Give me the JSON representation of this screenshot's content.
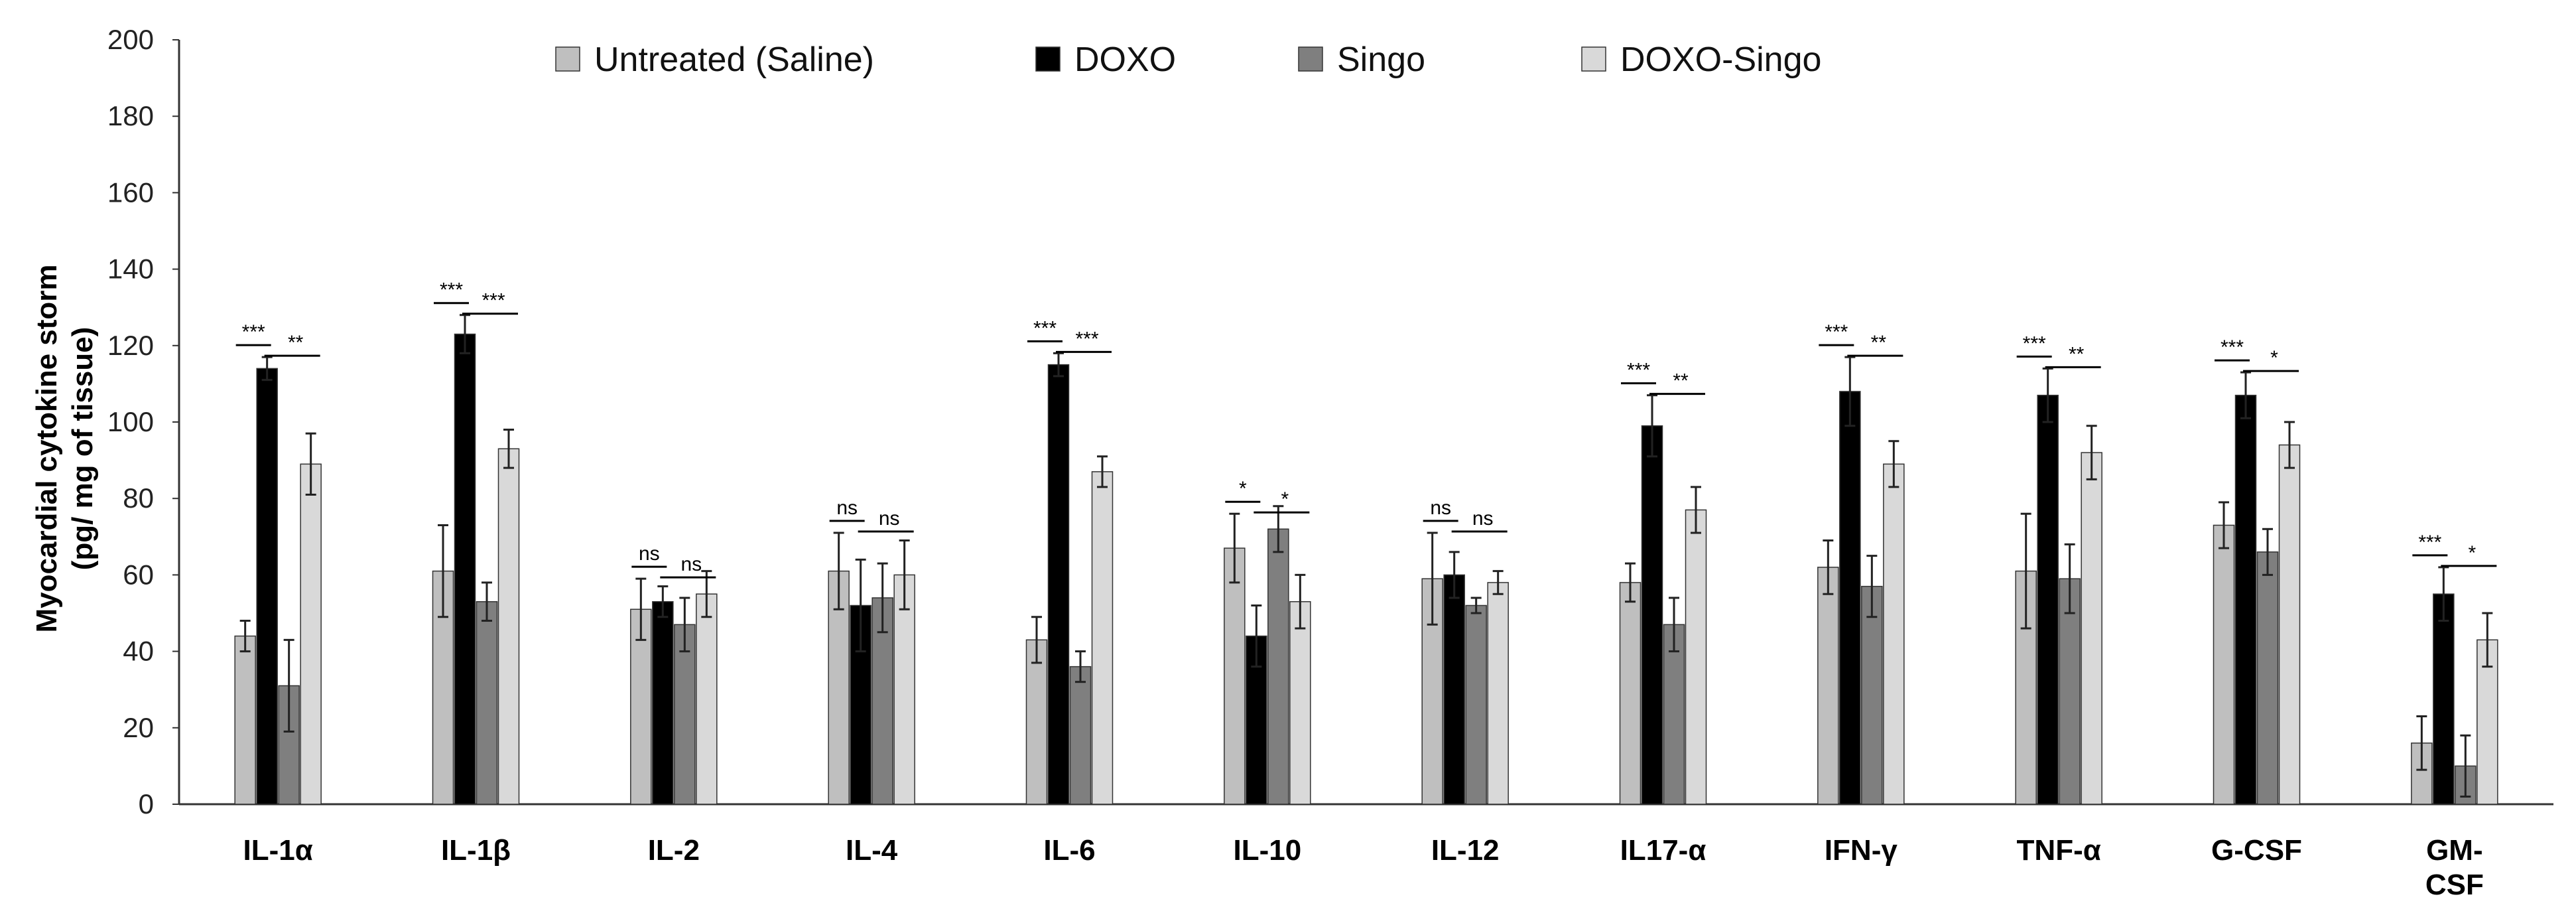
{
  "chart_data": {
    "type": "bar",
    "title": "",
    "xlabel": "",
    "ylabel_lines": [
      "Myocardial cytokine storm",
      "(pg/ mg of tissue)"
    ],
    "ylim": [
      0,
      200
    ],
    "yticks": [
      0,
      20,
      40,
      60,
      80,
      100,
      120,
      140,
      160,
      180,
      200
    ],
    "grid": false,
    "legend_position": "top",
    "categories": [
      [
        "IL-1α"
      ],
      [
        "IL-1β"
      ],
      [
        "IL-2"
      ],
      [
        "IL-4"
      ],
      [
        "IL-6"
      ],
      [
        "IL-10"
      ],
      [
        "IL-12"
      ],
      [
        "IL17-α"
      ],
      [
        "IFN-γ"
      ],
      [
        "TNF-α"
      ],
      [
        "G-CSF"
      ],
      [
        "GM-",
        "CSF"
      ]
    ],
    "series": [
      {
        "name": "Untreated (Saline)",
        "color": "#bfbfbf",
        "values": [
          44,
          61,
          51,
          61,
          43,
          67,
          59,
          58,
          62,
          61,
          73,
          16
        ],
        "errors": [
          4,
          12,
          8,
          10,
          6,
          9,
          12,
          5,
          7,
          15,
          6,
          7
        ]
      },
      {
        "name": "DOXO",
        "color": "#000000",
        "values": [
          114,
          123,
          53,
          52,
          115,
          44,
          60,
          99,
          108,
          107,
          107,
          55
        ],
        "errors": [
          3,
          5,
          4,
          12,
          3,
          8,
          6,
          8,
          9,
          7,
          6,
          7
        ]
      },
      {
        "name": "Singo",
        "color": "#7f7f7f",
        "values": [
          31,
          53,
          47,
          54,
          36,
          72,
          52,
          47,
          57,
          59,
          66,
          10
        ],
        "errors": [
          12,
          5,
          7,
          9,
          4,
          6,
          2,
          7,
          8,
          9,
          6,
          8
        ]
      },
      {
        "name": "DOXO-Singo",
        "color": "#d9d9d9",
        "values": [
          89,
          93,
          55,
          60,
          87,
          53,
          58,
          77,
          89,
          92,
          94,
          43
        ],
        "errors": [
          8,
          5,
          6,
          9,
          4,
          7,
          3,
          6,
          6,
          7,
          6,
          7
        ]
      }
    ],
    "significance": [
      {
        "category": 0,
        "left": "***",
        "right": "**"
      },
      {
        "category": 1,
        "left": "***",
        "right": "***"
      },
      {
        "category": 2,
        "left": "ns",
        "right": "ns"
      },
      {
        "category": 3,
        "left": "ns",
        "right": "ns"
      },
      {
        "category": 4,
        "left": "***",
        "right": "***"
      },
      {
        "category": 5,
        "left": "*",
        "right": "*"
      },
      {
        "category": 6,
        "left": "ns",
        "right": "ns"
      },
      {
        "category": 7,
        "left": "***",
        "right": "**"
      },
      {
        "category": 8,
        "left": "***",
        "right": "**"
      },
      {
        "category": 9,
        "left": "***",
        "right": "**"
      },
      {
        "category": 10,
        "left": "***",
        "right": "*"
      },
      {
        "category": 11,
        "left": "***",
        "right": "*"
      }
    ]
  }
}
